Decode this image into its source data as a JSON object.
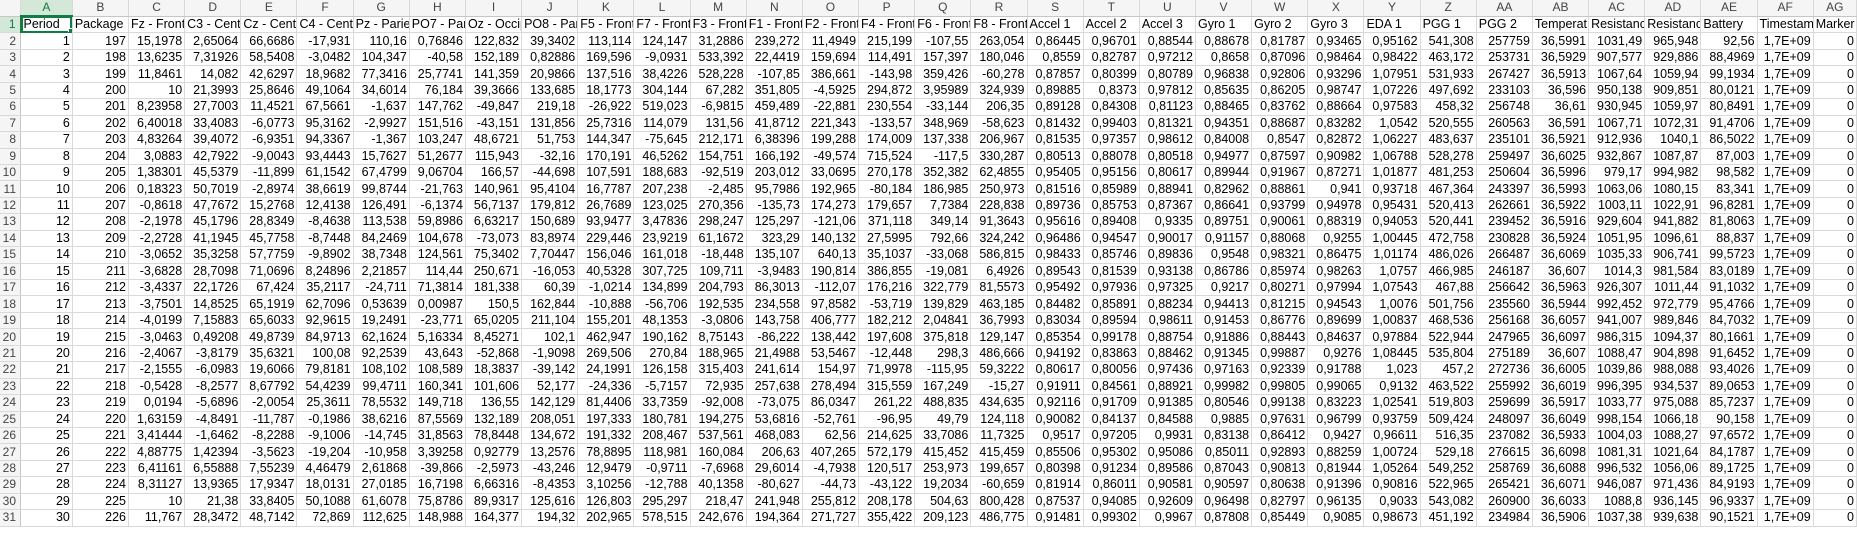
{
  "app": "spreadsheet",
  "active_cell": "A1",
  "accent_color": "#107c41",
  "column_letters": [
    "A",
    "B",
    "C",
    "D",
    "E",
    "F",
    "G",
    "H",
    "I",
    "J",
    "K",
    "L",
    "M",
    "N",
    "O",
    "P",
    "Q",
    "R",
    "S",
    "T",
    "U",
    "V",
    "W",
    "X",
    "Y",
    "Z",
    "AA",
    "AB",
    "AC",
    "AD",
    "AE",
    "AF",
    "AG"
  ],
  "headers": [
    "Period",
    "Package",
    "Fz - Fronta",
    "C3 - Centr",
    "Cz - Centr",
    "C4 - Centr",
    "Pz - Parieta",
    "PO7 - Pari",
    "Oz - Occip",
    "PO8 - Pari",
    "F5 - Fronta",
    "F7 - Fronta",
    "F3 - Fronta",
    "F1 - Fronta",
    "F2 - Fronta",
    "F4 - Fronta",
    "F6 - Fronta",
    "F8 - Fronta",
    "Accel 1",
    "Accel 2",
    "Accel 3",
    "Gyro 1",
    "Gyro 2",
    "Gyro 3",
    "EDA 1",
    "PGG 1",
    "PGG 2",
    "Temperat",
    "Resistanc",
    "Resistanc",
    "Battery",
    "Timestam",
    "Marker"
  ],
  "rows": [
    [
      "1",
      "197",
      "15,1978",
      "2,65064",
      "66,6686",
      "-17,931",
      "110,16",
      "0,76846",
      "122,832",
      "39,3402",
      "113,114",
      "124,147",
      "31,2886",
      "239,272",
      "11,4949",
      "215,199",
      "-107,55",
      "263,054",
      "0,86445",
      "0,96701",
      "0,88544",
      "0,88678",
      "0,81787",
      "0,93465",
      "0,95162",
      "541,308",
      "257759",
      "36,5991",
      "1031,49",
      "965,948",
      "92,56",
      "1,7E+09",
      "0"
    ],
    [
      "2",
      "198",
      "13,6235",
      "7,31926",
      "58,5408",
      "-3,0482",
      "104,347",
      "-40,58",
      "152,189",
      "0,82886",
      "169,596",
      "-9,0931",
      "533,392",
      "22,4419",
      "159,694",
      "114,491",
      "157,397",
      "180,046",
      "0,8559",
      "0,82787",
      "0,97212",
      "0,8658",
      "0,87096",
      "0,98464",
      "0,98422",
      "463,172",
      "253731",
      "36,5929",
      "907,577",
      "929,886",
      "88,4969",
      "1,7E+09",
      "0"
    ],
    [
      "3",
      "199",
      "11,8461",
      "14,082",
      "42,6297",
      "18,9682",
      "77,3416",
      "25,7741",
      "141,359",
      "20,9866",
      "137,516",
      "38,4226",
      "528,228",
      "-107,85",
      "386,661",
      "-143,98",
      "359,426",
      "-60,278",
      "0,87857",
      "0,80399",
      "0,80789",
      "0,96838",
      "0,92806",
      "0,93296",
      "1,07951",
      "531,933",
      "267427",
      "36,5913",
      "1067,64",
      "1059,94",
      "99,1934",
      "1,7E+09",
      "0"
    ],
    [
      "4",
      "200",
      "10",
      "21,3993",
      "25,8646",
      "49,1064",
      "34,6014",
      "76,184",
      "39,3666",
      "133,685",
      "18,1773",
      "304,144",
      "67,282",
      "351,805",
      "-4,5925",
      "294,872",
      "3,95989",
      "324,939",
      "0,89885",
      "0,8373",
      "0,97812",
      "0,85635",
      "0,86205",
      "0,98747",
      "1,07226",
      "497,692",
      "233103",
      "36,596",
      "950,138",
      "909,851",
      "80,0121",
      "1,7E+09",
      "0"
    ],
    [
      "5",
      "201",
      "8,23958",
      "27,7003",
      "11,4521",
      "67,5661",
      "-1,637",
      "147,762",
      "-49,847",
      "219,18",
      "-26,922",
      "519,023",
      "-6,9815",
      "459,489",
      "-22,881",
      "230,554",
      "-33,144",
      "206,35",
      "0,89128",
      "0,84308",
      "0,81123",
      "0,88465",
      "0,83762",
      "0,88664",
      "0,97583",
      "458,32",
      "256748",
      "36,61",
      "930,945",
      "1059,97",
      "80,8491",
      "1,7E+09",
      "0"
    ],
    [
      "6",
      "202",
      "6,40018",
      "33,4083",
      "-6,0773",
      "95,3162",
      "-2,9927",
      "151,516",
      "-43,151",
      "131,856",
      "25,7316",
      "114,079",
      "131,56",
      "41,8712",
      "221,343",
      "-133,57",
      "348,969",
      "-58,623",
      "0,81432",
      "0,99403",
      "0,81321",
      "0,94351",
      "0,88687",
      "0,83282",
      "1,0542",
      "520,555",
      "260563",
      "36,591",
      "1067,71",
      "1072,31",
      "91,4706",
      "1,7E+09",
      "0"
    ],
    [
      "7",
      "203",
      "4,83264",
      "39,4072",
      "-6,9351",
      "94,3367",
      "-1,367",
      "103,247",
      "48,6721",
      "51,753",
      "144,347",
      "-75,645",
      "212,171",
      "6,38396",
      "199,288",
      "174,009",
      "137,338",
      "206,967",
      "0,81535",
      "0,97357",
      "0,98612",
      "0,84008",
      "0,8547",
      "0,82872",
      "1,06227",
      "483,637",
      "235101",
      "36,5921",
      "912,936",
      "1040,1",
      "86,5022",
      "1,7E+09",
      "0"
    ],
    [
      "8",
      "204",
      "3,0883",
      "42,7922",
      "-9,0043",
      "93,4443",
      "15,7627",
      "51,2677",
      "115,943",
      "-32,16",
      "170,191",
      "46,5262",
      "154,751",
      "166,192",
      "-49,574",
      "715,524",
      "-117,5",
      "330,287",
      "0,80513",
      "0,88078",
      "0,80518",
      "0,94977",
      "0,87597",
      "0,90982",
      "1,06788",
      "528,278",
      "259497",
      "36,6025",
      "932,867",
      "1087,87",
      "87,003",
      "1,7E+09",
      "0"
    ],
    [
      "9",
      "205",
      "1,38301",
      "45,5379",
      "-11,899",
      "61,1542",
      "67,4799",
      "9,06704",
      "166,57",
      "-44,698",
      "107,591",
      "188,683",
      "-92,519",
      "203,012",
      "33,0695",
      "270,178",
      "352,382",
      "62,4855",
      "0,95405",
      "0,95156",
      "0,80617",
      "0,89944",
      "0,91967",
      "0,87271",
      "1,01877",
      "481,253",
      "250604",
      "36,5996",
      "979,17",
      "994,982",
      "98,582",
      "1,7E+09",
      "0"
    ],
    [
      "10",
      "206",
      "0,18323",
      "50,7019",
      "-2,8974",
      "38,6619",
      "99,8744",
      "-21,763",
      "140,961",
      "95,4104",
      "16,7787",
      "207,238",
      "-2,485",
      "95,7986",
      "192,965",
      "-80,184",
      "186,985",
      "250,973",
      "0,81516",
      "0,85989",
      "0,88941",
      "0,82962",
      "0,88861",
      "0,941",
      "0,93718",
      "467,364",
      "243397",
      "36,5993",
      "1063,06",
      "1080,15",
      "83,341",
      "1,7E+09",
      "0"
    ],
    [
      "11",
      "207",
      "-0,8618",
      "47,7672",
      "15,2768",
      "12,4138",
      "126,491",
      "-6,1374",
      "56,7137",
      "179,812",
      "26,7689",
      "123,025",
      "270,356",
      "-135,73",
      "174,273",
      "179,657",
      "7,7384",
      "228,838",
      "0,89736",
      "0,85753",
      "0,87367",
      "0,86641",
      "0,93799",
      "0,94978",
      "0,95431",
      "520,413",
      "262661",
      "36,5922",
      "1003,11",
      "1022,91",
      "96,8281",
      "1,7E+09",
      "0"
    ],
    [
      "12",
      "208",
      "-2,1978",
      "45,1796",
      "28,8349",
      "-8,4638",
      "113,538",
      "59,8986",
      "6,63217",
      "150,689",
      "93,9477",
      "3,47836",
      "298,247",
      "125,297",
      "-121,06",
      "371,118",
      "349,14",
      "91,3643",
      "0,95616",
      "0,89408",
      "0,9335",
      "0,89751",
      "0,90061",
      "0,88319",
      "0,94053",
      "520,441",
      "239452",
      "36,5916",
      "929,604",
      "941,882",
      "81,8063",
      "1,7E+09",
      "0"
    ],
    [
      "13",
      "209",
      "-2,2728",
      "41,1945",
      "45,7758",
      "-8,7448",
      "84,2469",
      "104,678",
      "-73,073",
      "83,8974",
      "229,446",
      "23,9219",
      "61,1672",
      "323,29",
      "140,132",
      "27,5995",
      "792,66",
      "324,242",
      "0,96486",
      "0,94547",
      "0,90017",
      "0,91157",
      "0,88068",
      "0,9255",
      "1,00445",
      "472,758",
      "230828",
      "36,5924",
      "1051,95",
      "1096,61",
      "88,837",
      "1,7E+09",
      "0"
    ],
    [
      "14",
      "210",
      "-3,0652",
      "35,3258",
      "57,7759",
      "-9,8902",
      "38,7348",
      "124,561",
      "75,3402",
      "7,70447",
      "156,046",
      "161,018",
      "-18,448",
      "135,107",
      "640,13",
      "35,1037",
      "-33,068",
      "586,815",
      "0,98433",
      "0,85746",
      "0,89836",
      "0,9548",
      "0,98321",
      "0,86475",
      "1,01174",
      "486,026",
      "266487",
      "36,6069",
      "1035,33",
      "906,741",
      "99,5723",
      "1,7E+09",
      "0"
    ],
    [
      "15",
      "211",
      "-3,6828",
      "28,7098",
      "71,0696",
      "8,24896",
      "2,21857",
      "114,44",
      "250,671",
      "-16,053",
      "40,5328",
      "307,725",
      "109,711",
      "-3,9483",
      "190,814",
      "386,855",
      "-19,081",
      "6,4926",
      "0,89543",
      "0,81539",
      "0,93138",
      "0,86786",
      "0,85974",
      "0,98263",
      "1,0757",
      "466,985",
      "246187",
      "36,607",
      "1014,3",
      "981,584",
      "83,0189",
      "1,7E+09",
      "0"
    ],
    [
      "16",
      "212",
      "-3,4337",
      "22,1726",
      "67,424",
      "35,2117",
      "-24,711",
      "71,3814",
      "181,338",
      "60,39",
      "-1,0214",
      "134,899",
      "204,793",
      "86,3013",
      "-112,07",
      "176,216",
      "322,779",
      "81,5573",
      "0,95492",
      "0,97936",
      "0,97325",
      "0,9217",
      "0,80271",
      "0,97994",
      "1,07543",
      "467,88",
      "256642",
      "36,5963",
      "926,307",
      "1011,44",
      "91,1032",
      "1,7E+09",
      "0"
    ],
    [
      "17",
      "213",
      "-3,7501",
      "14,8525",
      "65,1919",
      "62,7096",
      "0,53639",
      "0,00987",
      "150,5",
      "162,844",
      "-10,888",
      "-56,706",
      "192,535",
      "234,558",
      "97,8582",
      "-53,719",
      "139,829",
      "463,185",
      "0,84482",
      "0,85891",
      "0,88234",
      "0,94413",
      "0,81215",
      "0,94543",
      "1,0076",
      "501,756",
      "235560",
      "36,5944",
      "992,452",
      "972,779",
      "95,4766",
      "1,7E+09",
      "0"
    ],
    [
      "18",
      "214",
      "-4,0199",
      "7,15883",
      "65,6033",
      "92,9615",
      "19,2491",
      "-23,771",
      "65,0205",
      "211,104",
      "155,201",
      "48,1353",
      "-3,0806",
      "143,758",
      "406,777",
      "182,212",
      "2,04841",
      "36,7993",
      "0,83034",
      "0,89594",
      "0,98611",
      "0,91453",
      "0,86776",
      "0,89699",
      "1,00837",
      "468,536",
      "256168",
      "36,6057",
      "941,007",
      "989,846",
      "84,7032",
      "1,7E+09",
      "0"
    ],
    [
      "19",
      "215",
      "-3,0463",
      "0,49208",
      "49,8739",
      "84,9713",
      "62,1624",
      "5,16334",
      "8,45271",
      "102,1",
      "462,947",
      "190,162",
      "8,75143",
      "-86,222",
      "138,442",
      "197,608",
      "375,818",
      "129,147",
      "0,85354",
      "0,99178",
      "0,88754",
      "0,91886",
      "0,88443",
      "0,84637",
      "0,97884",
      "522,944",
      "247965",
      "36,6097",
      "986,315",
      "1094,37",
      "80,1661",
      "1,7E+09",
      "0"
    ],
    [
      "20",
      "216",
      "-2,4067",
      "-3,8179",
      "35,6321",
      "100,08",
      "92,2539",
      "43,643",
      "-52,868",
      "-1,9098",
      "269,506",
      "270,84",
      "188,965",
      "21,4988",
      "53,5467",
      "-12,448",
      "298,3",
      "486,666",
      "0,94192",
      "0,83863",
      "0,88462",
      "0,91345",
      "0,99887",
      "0,9276",
      "1,08445",
      "535,804",
      "275189",
      "36,607",
      "1088,47",
      "904,898",
      "91,6452",
      "1,7E+09",
      "0"
    ],
    [
      "21",
      "217",
      "-2,1555",
      "-6,0983",
      "19,6066",
      "79,8181",
      "108,102",
      "108,589",
      "18,3837",
      "-39,142",
      "24,1991",
      "126,158",
      "315,403",
      "241,614",
      "154,97",
      "71,9978",
      "-115,95",
      "59,3222",
      "0,80617",
      "0,80056",
      "0,97436",
      "0,97163",
      "0,92339",
      "0,91788",
      "1,023",
      "457,2",
      "272736",
      "36,6005",
      "1039,86",
      "988,088",
      "93,4026",
      "1,7E+09",
      "0"
    ],
    [
      "22",
      "218",
      "-0,5428",
      "-8,2577",
      "8,67792",
      "54,4239",
      "99,4711",
      "160,341",
      "101,606",
      "52,177",
      "-24,336",
      "-5,7157",
      "72,935",
      "257,638",
      "278,494",
      "315,559",
      "167,249",
      "-15,27",
      "0,91911",
      "0,84561",
      "0,88921",
      "0,99982",
      "0,99805",
      "0,99065",
      "0,9132",
      "463,522",
      "255992",
      "36,6019",
      "996,395",
      "934,537",
      "89,0653",
      "1,7E+09",
      "0"
    ],
    [
      "23",
      "219",
      "0,0194",
      "-5,6896",
      "-2,0054",
      "25,3611",
      "78,5532",
      "149,718",
      "136,55",
      "142,129",
      "81,4406",
      "33,7359",
      "-92,008",
      "-73,075",
      "86,0347",
      "261,22",
      "488,835",
      "434,635",
      "0,92116",
      "0,91709",
      "0,91385",
      "0,80546",
      "0,99138",
      "0,83223",
      "1,02541",
      "519,803",
      "259699",
      "36,5917",
      "1033,77",
      "975,088",
      "85,7237",
      "1,7E+09",
      "0"
    ],
    [
      "24",
      "220",
      "1,63159",
      "-4,8491",
      "-11,787",
      "-0,1986",
      "38,6216",
      "87,5569",
      "132,189",
      "208,051",
      "197,333",
      "180,781",
      "194,275",
      "53,6816",
      "-52,761",
      "-96,95",
      "49,79",
      "124,118",
      "0,90082",
      "0,84137",
      "0,84588",
      "0,9885",
      "0,97631",
      "0,96799",
      "0,93759",
      "509,424",
      "248097",
      "36,6049",
      "998,154",
      "1066,18",
      "90,158",
      "1,7E+09",
      "0"
    ],
    [
      "25",
      "221",
      "3,41444",
      "-1,6462",
      "-8,2288",
      "-9,1006",
      "-14,745",
      "31,8563",
      "78,8448",
      "134,672",
      "191,332",
      "208,467",
      "537,561",
      "468,083",
      "62,56",
      "214,625",
      "33,7086",
      "11,7325",
      "0,9517",
      "0,97205",
      "0,9931",
      "0,83138",
      "0,86412",
      "0,9427",
      "0,96611",
      "516,35",
      "237082",
      "36,5933",
      "1004,03",
      "1088,27",
      "97,6572",
      "1,7E+09",
      "0"
    ],
    [
      "26",
      "222",
      "4,88775",
      "1,42394",
      "-3,5623",
      "-19,204",
      "-10,958",
      "3,39258",
      "0,92779",
      "13,2576",
      "78,8895",
      "118,981",
      "160,084",
      "206,63",
      "407,265",
      "572,179",
      "415,452",
      "415,459",
      "0,85506",
      "0,95302",
      "0,95086",
      "0,85011",
      "0,92893",
      "0,88259",
      "1,00724",
      "529,18",
      "276615",
      "36,6098",
      "1081,31",
      "1021,64",
      "84,1787",
      "1,7E+09",
      "0"
    ],
    [
      "27",
      "223",
      "6,41161",
      "6,55888",
      "7,55239",
      "4,46479",
      "2,61868",
      "-39,866",
      "-2,5973",
      "-43,246",
      "12,9479",
      "-0,9711",
      "-7,6968",
      "29,6014",
      "-4,7938",
      "120,517",
      "253,973",
      "199,657",
      "0,80398",
      "0,91234",
      "0,89586",
      "0,87043",
      "0,90813",
      "0,81944",
      "1,05264",
      "549,252",
      "258769",
      "36,6088",
      "996,532",
      "1056,06",
      "89,1725",
      "1,7E+09",
      "0"
    ],
    [
      "28",
      "224",
      "8,31127",
      "13,9365",
      "17,9347",
      "18,0131",
      "27,0185",
      "16,7198",
      "6,66316",
      "-8,4353",
      "3,10256",
      "-12,788",
      "40,1358",
      "-80,627",
      "-44,73",
      "-43,122",
      "19,2034",
      "-60,659",
      "0,81914",
      "0,86011",
      "0,90581",
      "0,90597",
      "0,80638",
      "0,91396",
      "0,90816",
      "522,965",
      "265421",
      "36,6071",
      "946,087",
      "971,436",
      "84,9193",
      "1,7E+09",
      "0"
    ],
    [
      "29",
      "225",
      "10",
      "21,38",
      "33,8405",
      "50,1088",
      "61,6078",
      "75,8786",
      "89,9317",
      "125,616",
      "126,803",
      "295,297",
      "218,47",
      "241,948",
      "255,812",
      "208,178",
      "504,63",
      "800,428",
      "0,87537",
      "0,94085",
      "0,92609",
      "0,96498",
      "0,82797",
      "0,96135",
      "0,9033",
      "543,082",
      "260900",
      "36,6033",
      "1088,8",
      "936,145",
      "96,9337",
      "1,7E+09",
      "0"
    ],
    [
      "30",
      "226",
      "11,767",
      "28,3472",
      "48,7142",
      "72,869",
      "112,625",
      "148,988",
      "164,377",
      "194,32",
      "202,965",
      "578,515",
      "242,676",
      "194,364",
      "271,727",
      "355,422",
      "209,123",
      "486,775",
      "0,91481",
      "0,99302",
      "0,9967",
      "0,87808",
      "0,85449",
      "0,9085",
      "0,98673",
      "451,192",
      "234984",
      "36,5906",
      "1037,38",
      "939,638",
      "90,1521",
      "1,7E+09",
      "0"
    ]
  ]
}
